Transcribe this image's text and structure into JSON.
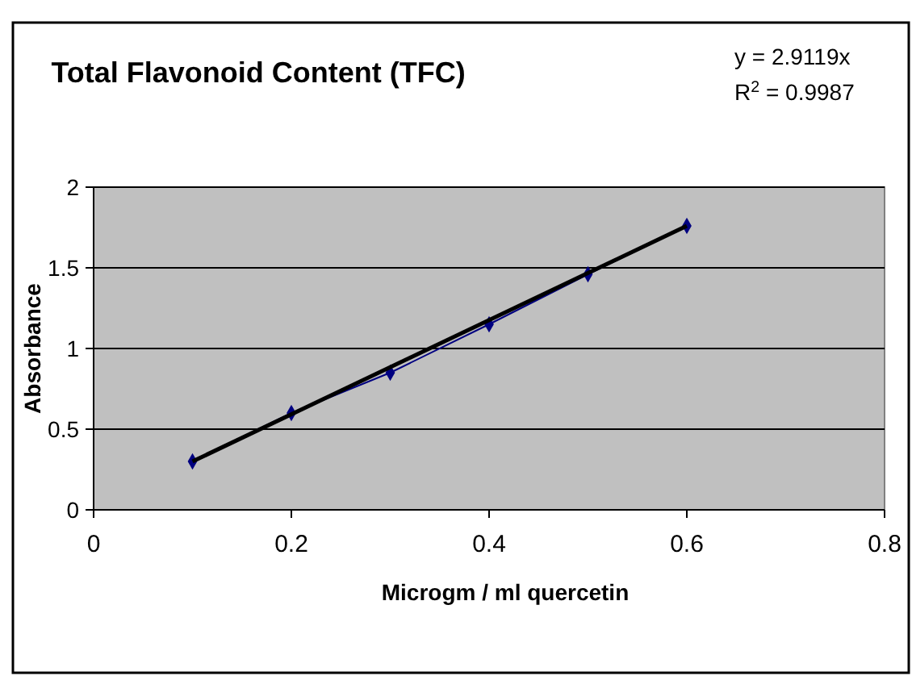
{
  "chart_data": {
    "type": "line",
    "title": "Total Flavonoid Content (TFC)",
    "xlabel": "Microgm / ml quercetin",
    "ylabel": "Absorbance",
    "annotations": [
      "y = 2.9119x",
      "R$^{2}$ = 0.9987"
    ],
    "xlim": [
      0,
      0.8
    ],
    "xticks": [
      0,
      0.2,
      0.4,
      0.6,
      0.8
    ],
    "ylim": [
      0,
      2
    ],
    "yticks": [
      0,
      0.5,
      1,
      1.5,
      2
    ],
    "grid": "y",
    "series": [
      {
        "color": "#000080",
        "marker": "diamond",
        "x": [
          0.1,
          0.2,
          0.3,
          0.4,
          0.5,
          0.6
        ],
        "values": [
          0.3,
          0.6,
          0.85,
          1.15,
          1.46,
          1.76
        ]
      },
      {
        "color": "#000000",
        "marker": "none",
        "x": [
          0.1,
          0.6
        ],
        "values": [
          0.3,
          1.76
        ]
      }
    ]
  }
}
